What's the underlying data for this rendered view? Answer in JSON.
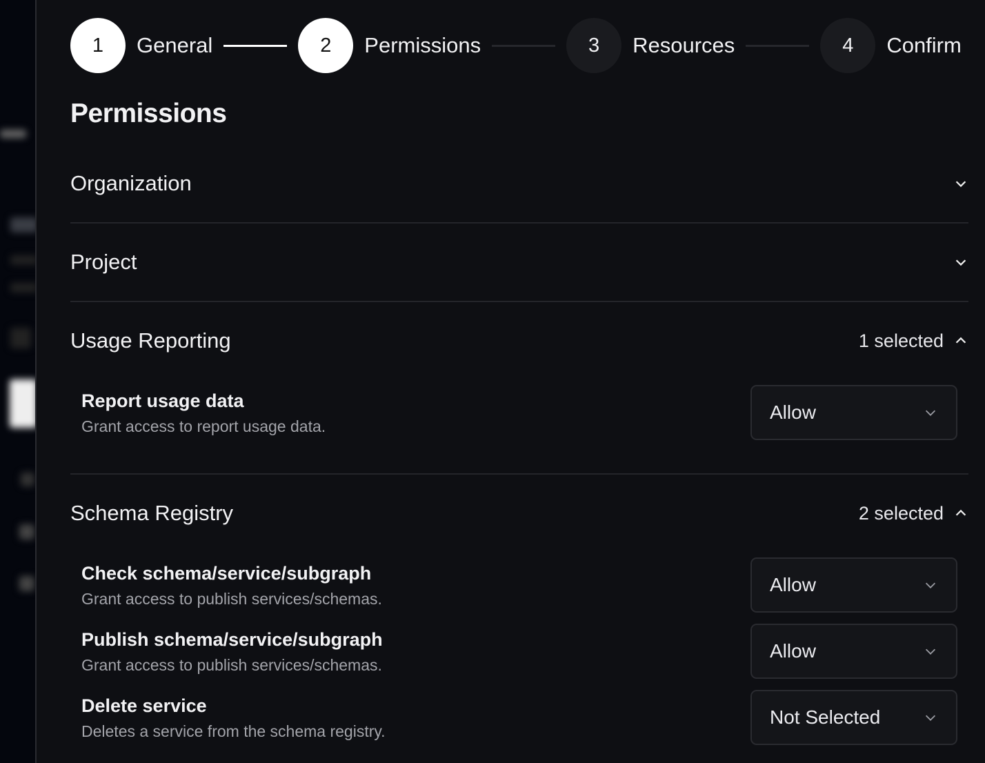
{
  "stepper": {
    "steps": [
      {
        "number": "1",
        "label": "General",
        "state": "complete"
      },
      {
        "number": "2",
        "label": "Permissions",
        "state": "current"
      },
      {
        "number": "3",
        "label": "Resources",
        "state": "upcoming"
      },
      {
        "number": "4",
        "label": "Confirm",
        "state": "upcoming"
      }
    ]
  },
  "page_title": "Permissions",
  "sections": {
    "organization": {
      "title": "Organization",
      "expanded": false
    },
    "project": {
      "title": "Project",
      "expanded": false
    },
    "usage": {
      "title": "Usage Reporting",
      "count": "1 selected",
      "expanded": true,
      "items": [
        {
          "title": "Report usage data",
          "desc": "Grant access to report usage data.",
          "value": "Allow"
        }
      ]
    },
    "schema": {
      "title": "Schema Registry",
      "count": "2 selected",
      "expanded": true,
      "items": [
        {
          "title": "Check schema/service/subgraph",
          "desc": "Grant access to publish services/schemas.",
          "value": "Allow"
        },
        {
          "title": "Publish schema/service/subgraph",
          "desc": "Grant access to publish services/schemas.",
          "value": "Allow"
        },
        {
          "title": "Delete service",
          "desc": "Deletes a service from the schema registry.",
          "value": "Not Selected"
        }
      ]
    }
  }
}
